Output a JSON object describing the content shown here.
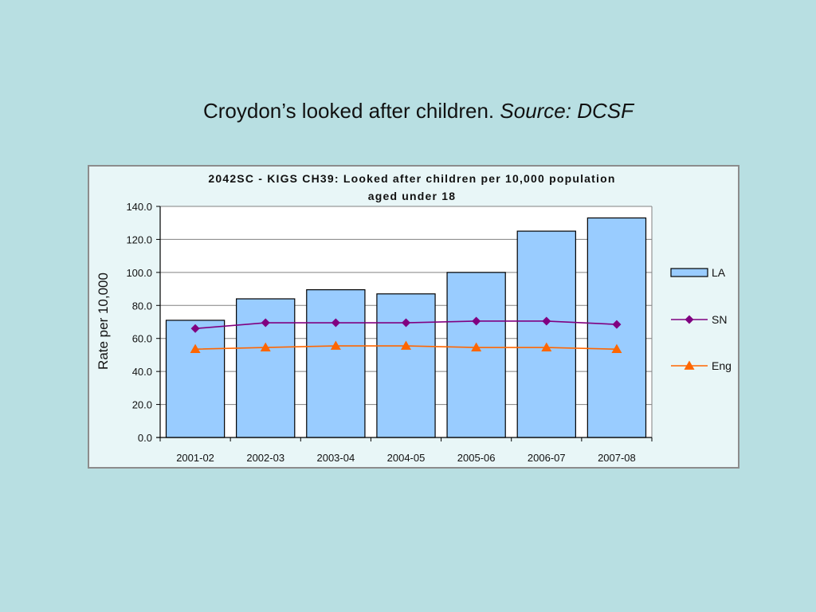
{
  "slide": {
    "title_main": "Croydon’s looked after children.",
    "title_source": "Source: DCSF"
  },
  "chart_data": {
    "type": "bar",
    "title_line1": "2042SC - KIGS CH39: Looked after children per 10,000 population",
    "title_line2": "aged under 18",
    "ylabel": "Rate per 10,000",
    "ylim": [
      0,
      140
    ],
    "yticks": [
      "0.0",
      "20.0",
      "40.0",
      "60.0",
      "80.0",
      "100.0",
      "120.0",
      "140.0"
    ],
    "categories": [
      "2001-02",
      "2002-03",
      "2003-04",
      "2004-05",
      "2005-06",
      "2006-07",
      "2007-08"
    ],
    "grid": true,
    "legend_position": "right",
    "series": [
      {
        "name": "LA",
        "kind": "bar",
        "color": "#99ccff",
        "values": [
          71,
          84,
          89.5,
          87,
          100,
          125,
          133
        ]
      },
      {
        "name": "SN",
        "kind": "line",
        "marker": "diamond",
        "color": "#800080",
        "values": [
          66,
          69.5,
          69.5,
          69.5,
          70.5,
          70.5,
          68.5
        ]
      },
      {
        "name": "Eng",
        "kind": "line",
        "marker": "triangle",
        "color": "#ff6600",
        "values": [
          53.5,
          54.5,
          55.5,
          55.5,
          54.5,
          54.5,
          53.5
        ]
      }
    ]
  }
}
